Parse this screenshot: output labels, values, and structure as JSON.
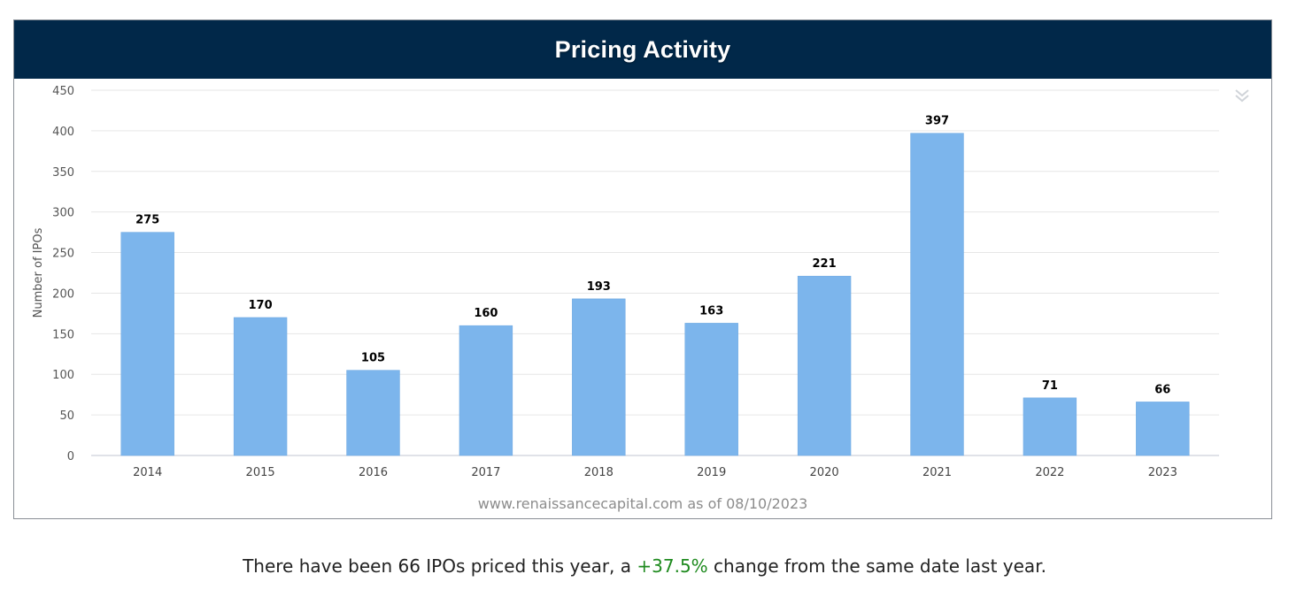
{
  "header": {
    "title": "Pricing Activity"
  },
  "menu": {
    "icon": "double-chevron-down-icon"
  },
  "chart_data": {
    "type": "bar",
    "title": "Pricing Activity",
    "categories": [
      "2014",
      "2015",
      "2016",
      "2017",
      "2018",
      "2019",
      "2020",
      "2021",
      "2022",
      "2023"
    ],
    "values": [
      275,
      170,
      105,
      160,
      193,
      163,
      221,
      397,
      71,
      66
    ],
    "xlabel": "",
    "ylabel": "Number of IPOs",
    "ylim": [
      0,
      450
    ],
    "yticks": [
      0,
      50,
      100,
      150,
      200,
      250,
      300,
      350,
      400,
      450
    ],
    "grid": true,
    "legend": "none",
    "bar_color": "#7cb5ec",
    "data_labels": true
  },
  "source": {
    "text": "www.renaissancecapital.com as of 08/10/2023"
  },
  "summary": {
    "prefix": "There have been 66 IPOs priced this year, a ",
    "change": "+37.5%",
    "suffix": " change from the same date last year.",
    "change_color": "#1e8a1e"
  }
}
